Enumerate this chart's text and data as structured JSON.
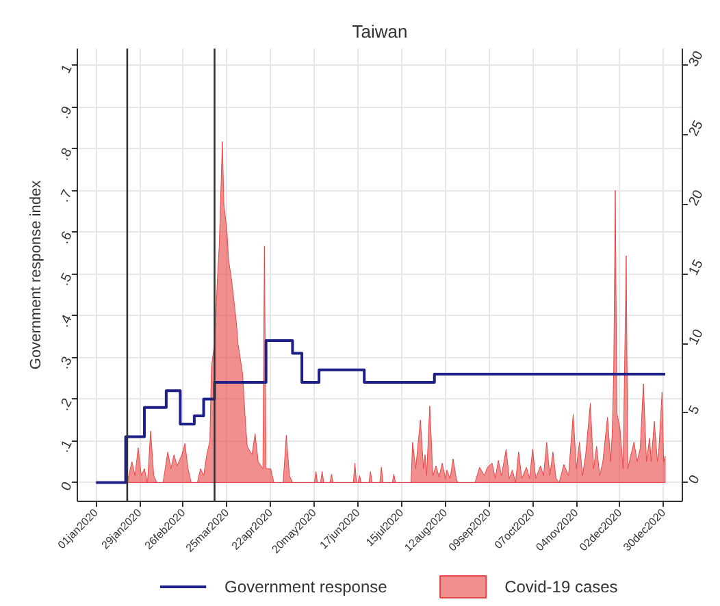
{
  "chart_data": {
    "type": "step",
    "title": "Taiwan",
    "ylabel": "Government response index",
    "xlim": [
      "2019-12-20",
      "2021-01-11"
    ],
    "xticks": [
      {
        "value": "2020-01-01",
        "label": "01jan2020"
      },
      {
        "value": "2020-01-29",
        "label": "29jan2020"
      },
      {
        "value": "2020-02-26",
        "label": "26feb2020"
      },
      {
        "value": "2020-03-25",
        "label": "25mar2020"
      },
      {
        "value": "2020-04-22",
        "label": "22apr2020"
      },
      {
        "value": "2020-05-20",
        "label": "20may2020"
      },
      {
        "value": "2020-06-17",
        "label": "17jun2020"
      },
      {
        "value": "2020-07-15",
        "label": "15jul2020"
      },
      {
        "value": "2020-08-12",
        "label": "12aug2020"
      },
      {
        "value": "2020-09-09",
        "label": "09sep2020"
      },
      {
        "value": "2020-10-07",
        "label": "07oct2020"
      },
      {
        "value": "2020-11-04",
        "label": "04nov2020"
      },
      {
        "value": "2020-12-02",
        "label": "02dec2020"
      },
      {
        "value": "2020-12-30",
        "label": "30dec2020"
      }
    ],
    "ylim": [
      -0.045,
      1.04
    ],
    "yticks": [
      0,
      {
        "value": 0.1,
        "label": ".1"
      },
      {
        "value": 0.2,
        "label": ".2"
      },
      {
        "value": 0.3,
        "label": ".3"
      },
      {
        "value": 0.4,
        "label": ".4"
      },
      {
        "value": 0.5,
        "label": ".5"
      },
      {
        "value": 0.6,
        "label": ".6"
      },
      {
        "value": 0.7,
        "label": ".7"
      },
      {
        "value": 0.8,
        "label": ".8"
      },
      {
        "value": 0.9,
        "label": ".9"
      },
      1
    ],
    "y2lim": [
      -1.35,
      31.2
    ],
    "y2ticks": [
      0,
      5,
      10,
      15,
      20,
      25,
      30
    ],
    "grid": true,
    "legend": "bottom",
    "ref_lines": [
      {
        "axis": "x",
        "value": "2020-01-21",
        "color": "#333333"
      },
      {
        "axis": "x",
        "value": "2020-03-17",
        "color": "#333333"
      }
    ],
    "series": [
      {
        "name": "Government response",
        "color": "#1f1f8a",
        "x": [
          "2020-01-01",
          "2020-01-20",
          "2020-02-01",
          "2020-02-15",
          "2020-02-24",
          "2020-03-04",
          "2020-03-10",
          "2020-03-17",
          "2020-04-19",
          "2020-05-06",
          "2020-05-12",
          "2020-05-23",
          "2020-06-21",
          "2020-08-05",
          "2020-12-31"
        ],
        "values": [
          0,
          0.11,
          0.18,
          0.22,
          0.14,
          0.16,
          0.2,
          0.24,
          0.34,
          0.31,
          0.24,
          0.27,
          0.24,
          0.26,
          0.26
        ]
      },
      {
        "name": "Covid-19 cases",
        "type": "area",
        "axis": "y2",
        "color": "#e84545",
        "x": [
          "2020-01-01",
          "2020-01-21",
          "2020-01-24",
          "2020-01-26",
          "2020-01-28",
          "2020-01-30",
          "2020-02-01",
          "2020-02-03",
          "2020-02-05",
          "2020-02-07",
          "2020-02-09",
          "2020-02-13",
          "2020-02-16",
          "2020-02-18",
          "2020-02-20",
          "2020-02-22",
          "2020-02-25",
          "2020-02-27",
          "2020-02-29",
          "2020-03-02",
          "2020-03-06",
          "2020-03-08",
          "2020-03-10",
          "2020-03-12",
          "2020-03-14",
          "2020-03-15",
          "2020-03-17",
          "2020-03-19",
          "2020-03-20",
          "2020-03-22",
          "2020-03-23",
          "2020-03-25",
          "2020-03-26",
          "2020-03-28",
          "2020-03-29",
          "2020-03-31",
          "2020-04-01",
          "2020-04-04",
          "2020-04-06",
          "2020-04-07",
          "2020-04-10",
          "2020-04-12",
          "2020-04-14",
          "2020-04-17",
          "2020-04-18",
          "2020-04-19",
          "2020-04-22",
          "2020-04-24",
          "2020-04-30",
          "2020-05-02",
          "2020-05-04",
          "2020-05-06",
          "2020-05-20",
          "2020-05-21",
          "2020-05-22",
          "2020-05-24",
          "2020-05-25",
          "2020-05-26",
          "2020-05-30",
          "2020-05-31",
          "2020-06-01",
          "2020-06-14",
          "2020-06-15",
          "2020-06-16",
          "2020-06-17",
          "2020-06-18",
          "2020-06-19",
          "2020-06-24",
          "2020-06-25",
          "2020-06-26",
          "2020-07-01",
          "2020-07-02",
          "2020-07-03",
          "2020-07-09",
          "2020-07-10",
          "2020-07-11",
          "2020-07-21",
          "2020-07-22",
          "2020-07-24",
          "2020-07-27",
          "2020-07-29",
          "2020-07-30",
          "2020-07-31",
          "2020-08-02",
          "2020-08-04",
          "2020-08-06",
          "2020-08-08",
          "2020-08-10",
          "2020-08-12",
          "2020-08-13",
          "2020-08-15",
          "2020-08-17",
          "2020-08-19",
          "2020-08-20",
          "2020-08-31",
          "2020-09-03",
          "2020-09-06",
          "2020-09-08",
          "2020-09-11",
          "2020-09-13",
          "2020-09-15",
          "2020-09-17",
          "2020-09-20",
          "2020-09-22",
          "2020-09-24",
          "2020-09-26",
          "2020-09-28",
          "2020-09-30",
          "2020-10-03",
          "2020-10-05",
          "2020-10-07",
          "2020-10-09",
          "2020-10-12",
          "2020-10-14",
          "2020-10-16",
          "2020-10-18",
          "2020-10-20",
          "2020-10-22",
          "2020-10-24",
          "2020-10-27",
          "2020-10-30",
          "2020-11-02",
          "2020-11-04",
          "2020-11-06",
          "2020-11-08",
          "2020-11-10",
          "2020-11-13",
          "2020-11-15",
          "2020-11-17",
          "2020-11-19",
          "2020-11-21",
          "2020-11-24",
          "2020-11-26",
          "2020-11-27",
          "2020-11-28",
          "2020-11-29",
          "2020-11-30",
          "2020-12-02",
          "2020-12-04",
          "2020-12-06",
          "2020-12-07",
          "2020-12-09",
          "2020-12-11",
          "2020-12-13",
          "2020-12-15",
          "2020-12-17",
          "2020-12-19",
          "2020-12-21",
          "2020-12-22",
          "2020-12-24",
          "2020-12-26",
          "2020-12-27",
          "2020-12-29",
          "2020-12-30",
          "2020-12-31"
        ],
        "values": [
          0,
          0,
          1.5,
          0.5,
          2.5,
          0.5,
          1,
          0,
          3.7,
          0.5,
          0,
          0,
          2.2,
          1,
          2,
          1.2,
          2,
          2.8,
          1,
          0,
          0,
          1,
          0.5,
          2,
          3,
          8.3,
          10,
          15,
          17,
          24.5,
          20,
          18,
          16,
          14.5,
          13.5,
          11.5,
          10,
          7.8,
          4,
          2.6,
          2,
          3.5,
          1.5,
          1,
          17,
          1,
          1,
          0,
          0,
          3.4,
          0.5,
          0,
          0,
          0.8,
          0,
          0,
          0.8,
          0,
          0,
          0.6,
          0,
          0,
          1.4,
          0,
          0,
          0.5,
          0,
          0,
          0.8,
          0,
          0,
          1.1,
          0,
          0,
          0.6,
          0,
          0,
          2.9,
          1,
          4.5,
          1,
          2,
          0.5,
          5.5,
          0.5,
          1.2,
          0.4,
          1.4,
          0.3,
          0.9,
          0.3,
          1.7,
          0.3,
          0,
          0,
          1.1,
          0.5,
          1.1,
          1.4,
          0.3,
          1.6,
          0.5,
          2.4,
          0.3,
          0.9,
          0,
          2.2,
          0.3,
          1.1,
          0.3,
          2.4,
          0.3,
          1.2,
          0.5,
          2.9,
          0.5,
          2.2,
          0.3,
          0,
          1.3,
          0.5,
          4.9,
          1,
          2.9,
          0.5,
          2,
          5.7,
          1,
          2.6,
          0.5,
          1.5,
          4.7,
          1.5,
          3.5,
          8.1,
          21,
          5,
          3.9,
          1,
          16.3,
          1,
          2,
          2.9,
          1.5,
          2.5,
          7.1,
          1.5,
          3.2,
          1.5,
          4.4,
          1.5,
          2.5,
          6.5,
          1.5,
          1.9
        ]
      }
    ]
  }
}
